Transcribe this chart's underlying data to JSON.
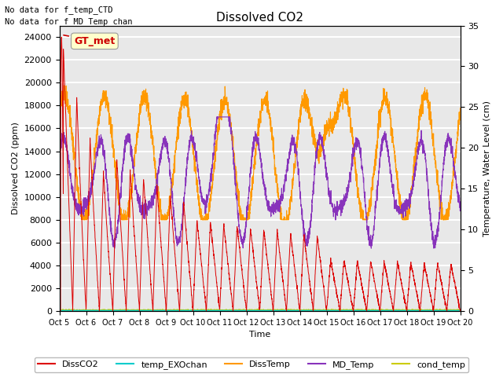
{
  "title": "Dissolved CO2",
  "xlabel": "Time",
  "ylabel_left": "Dissolved CO2 (ppm)",
  "ylabel_right": "Temperature, Water Level (cm)",
  "text_lines": [
    "No data for f_temp_CTD",
    "No data for f_MD_Temp_chan"
  ],
  "annotation_text": "GT_met",
  "ylim_left": [
    0,
    25000
  ],
  "ylim_right": [
    0,
    35
  ],
  "yticks_left": [
    0,
    2000,
    4000,
    6000,
    8000,
    10000,
    12000,
    14000,
    16000,
    18000,
    20000,
    22000,
    24000
  ],
  "yticks_right": [
    0,
    5,
    10,
    15,
    20,
    25,
    30,
    35
  ],
  "xtick_labels": [
    "Oct 5",
    "Oct 6",
    "Oct 7",
    "Oct 8",
    "Oct 9",
    "Oct 10",
    "Oct 11",
    "Oct 12",
    "Oct 13",
    "Oct 14",
    "Oct 15",
    "Oct 16",
    "Oct 17",
    "Oct 18",
    "Oct 19",
    "Oct 20"
  ],
  "colors": {
    "DissCO2": "#dd0000",
    "temp_EXOchan": "#00cccc",
    "DissTemp": "#ff9900",
    "MD_Temp": "#8833bb",
    "cond_temp": "#cccc00"
  },
  "background_color": "#e8e8e8",
  "grid_color": "#ffffff",
  "legend_labels": [
    "DissCO2",
    "temp_EXOchan",
    "DissTemp",
    "MD_Temp",
    "cond_temp"
  ]
}
